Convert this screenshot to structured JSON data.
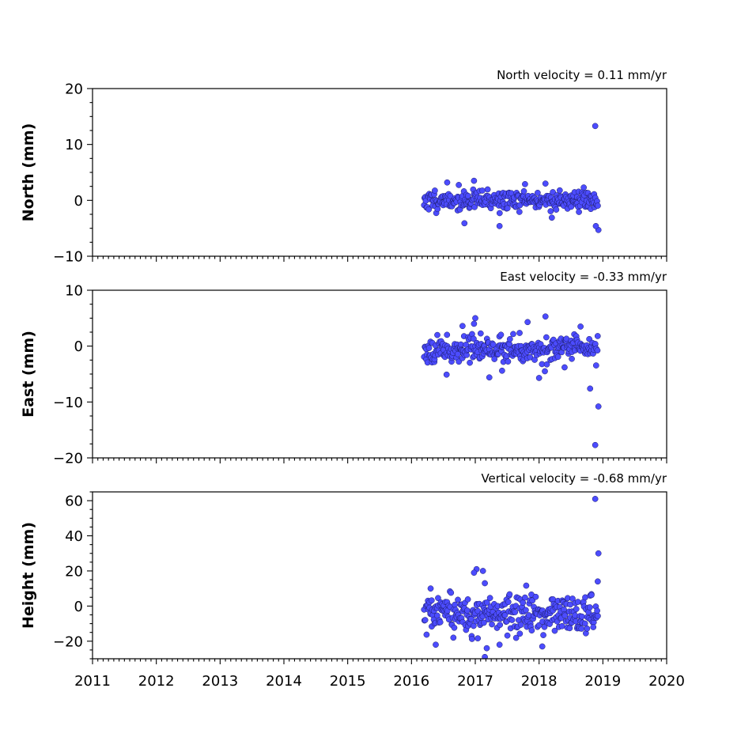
{
  "chart_data": [
    {
      "type": "scatter",
      "ylabel": "North (mm)",
      "annotation": "North velocity = 0.11 mm/yr",
      "xlim": [
        2011,
        2020
      ],
      "ylim": [
        -10,
        20
      ],
      "yticks": [
        -10,
        0,
        10,
        20
      ],
      "ytick_labels": [
        "−10",
        "0",
        "10",
        "20"
      ],
      "show_xtick_labels": false,
      "marker_color": "#4c4cff",
      "outliers": [
        [
          2018.88,
          13.3
        ],
        [
          2018.93,
          -5.3
        ],
        [
          2018.89,
          -4.6
        ],
        [
          2017.38,
          -4.6
        ],
        [
          2016.83,
          -4.1
        ],
        [
          2016.98,
          3.5
        ],
        [
          2018.1,
          3.0
        ],
        [
          2017.78,
          2.9
        ],
        [
          2018.7,
          2.3
        ],
        [
          2018.2,
          -3.1
        ]
      ],
      "bulk": {
        "start": 2016.2,
        "end": 2018.92,
        "mean": 0.0,
        "spread": 0.9,
        "count": 300,
        "seed": 11
      }
    },
    {
      "type": "scatter",
      "ylabel": "East (mm)",
      "annotation": "East velocity = -0.33 mm/yr",
      "xlim": [
        2011,
        2020
      ],
      "ylim": [
        -20,
        10
      ],
      "yticks": [
        -20,
        -10,
        0,
        10
      ],
      "ytick_labels": [
        "−20",
        "−10",
        "0",
        "10"
      ],
      "show_xtick_labels": false,
      "marker_color": "#4c4cff",
      "outliers": [
        [
          2018.88,
          -17.7
        ],
        [
          2018.93,
          -10.8
        ],
        [
          2018.8,
          -7.6
        ],
        [
          2017.0,
          5.0
        ],
        [
          2018.1,
          5.3
        ],
        [
          2017.82,
          4.3
        ],
        [
          2016.98,
          4.0
        ],
        [
          2018.65,
          3.5
        ],
        [
          2016.8,
          3.6
        ],
        [
          2016.55,
          -5.1
        ],
        [
          2017.22,
          -5.6
        ],
        [
          2018.0,
          -5.7
        ],
        [
          2017.42,
          -4.4
        ],
        [
          2018.4,
          -3.8
        ]
      ],
      "bulk": {
        "start": 2016.2,
        "end": 2018.92,
        "mean": -0.5,
        "spread": 1.1,
        "count": 300,
        "seed": 23
      }
    },
    {
      "type": "scatter",
      "ylabel": "Height (mm)",
      "annotation": "Vertical velocity = -0.68 mm/yr",
      "xlim": [
        2011,
        2020
      ],
      "ylim": [
        -30,
        65
      ],
      "yticks": [
        -20,
        0,
        20,
        40,
        60
      ],
      "ytick_labels": [
        "−20",
        "0",
        "20",
        "40",
        "60"
      ],
      "show_xtick_labels": true,
      "xticks": [
        2011,
        2012,
        2013,
        2014,
        2015,
        2016,
        2017,
        2018,
        2019,
        2020
      ],
      "xtick_labels": [
        "2011",
        "2012",
        "2013",
        "2014",
        "2015",
        "2016",
        "2017",
        "2018",
        "2019",
        "2020"
      ],
      "marker_color": "#4c4cff",
      "outliers": [
        [
          2018.88,
          61.0
        ],
        [
          2018.93,
          30.0
        ],
        [
          2017.02,
          21.0
        ],
        [
          2017.12,
          20.0
        ],
        [
          2016.98,
          19.0
        ],
        [
          2016.3,
          10.0
        ],
        [
          2017.15,
          13.0
        ],
        [
          2018.92,
          14.0
        ],
        [
          2017.15,
          -29.0
        ],
        [
          2017.18,
          -24.0
        ],
        [
          2018.05,
          -23.0
        ],
        [
          2017.38,
          -22.0
        ],
        [
          2016.38,
          -22.0
        ],
        [
          2018.85,
          -12.0
        ]
      ],
      "bulk": {
        "start": 2016.2,
        "end": 2018.92,
        "mean": -5.0,
        "spread": 5.5,
        "count": 320,
        "seed": 37
      }
    }
  ]
}
